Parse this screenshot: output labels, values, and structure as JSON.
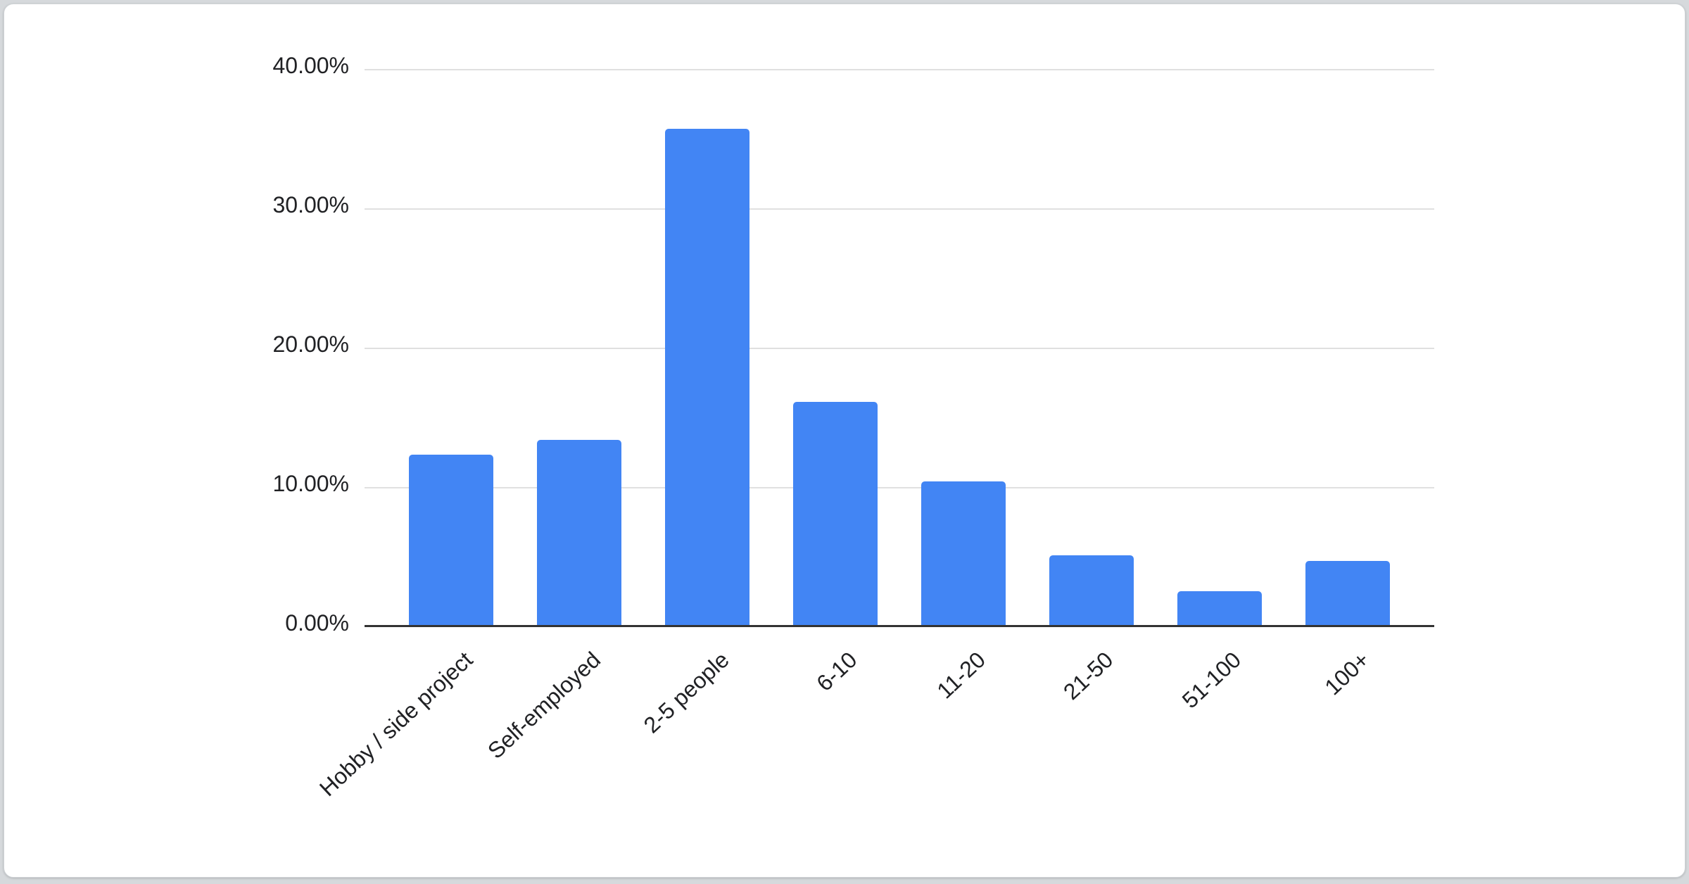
{
  "chart_data": {
    "type": "bar",
    "title": "",
    "xlabel": "",
    "ylabel": "",
    "categories": [
      "Hobby / side project",
      "Self-employed",
      "2-5 people",
      "6-10",
      "11-20",
      "21-50",
      "51-100",
      "100+"
    ],
    "values": [
      12.2,
      13.3,
      35.6,
      16.0,
      10.3,
      5.0,
      2.4,
      4.6
    ],
    "yticks": [
      "40.00%",
      "30.00%",
      "20.00%",
      "10.00%",
      "0.00%"
    ],
    "ylim": [
      0,
      40
    ],
    "grid": true,
    "legend": "none",
    "bar_color": "#4285f4"
  },
  "colors": {
    "page_bg": "#d6d9dc",
    "card_bg": "#ffffff",
    "card_border": "#cfd3d6",
    "gridline": "#e0e0e0",
    "axis_line": "#333333",
    "label_text": "#202124"
  }
}
